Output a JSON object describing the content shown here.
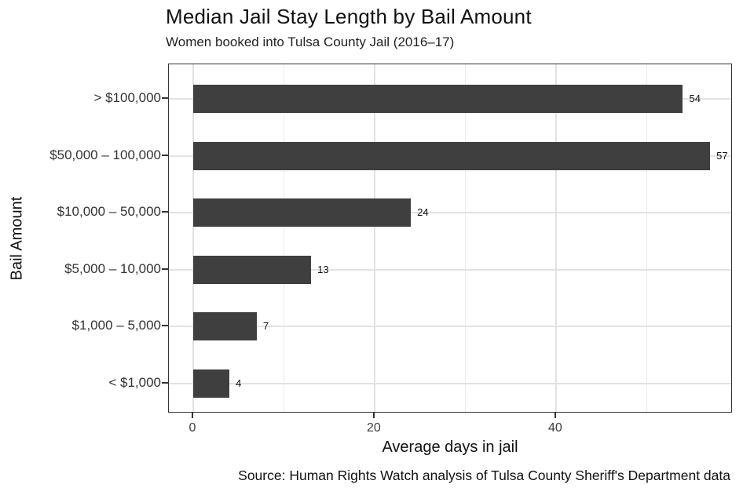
{
  "chart_data": {
    "type": "bar",
    "orientation": "horizontal",
    "title": "Median Jail Stay Length by Bail Amount",
    "subtitle": "Women booked into Tulsa County Jail (2016–17)",
    "categories": [
      "> $100,000",
      "$50,000 – 100,000",
      "$10,000 – 50,000",
      "$5,000 – 10,000",
      "$1,000 – 5,000",
      "< $1,000"
    ],
    "values": [
      54,
      57,
      24,
      13,
      7,
      4
    ],
    "value_labels": [
      "54",
      "57",
      "24",
      "13",
      "7",
      "4"
    ],
    "xlabel": "Average days in jail",
    "ylabel": "Bail Amount",
    "x_tick_values": [
      0,
      20,
      40
    ],
    "x_tick_labels": [
      "0",
      "20",
      "40"
    ],
    "x_minor_tick_values": [
      10,
      30,
      50
    ],
    "xlim": [
      0,
      59.5
    ],
    "grid": true,
    "legend": false,
    "bar_color": "#3f3f3f",
    "caption": "Source: Human Rights Watch analysis of Tulsa County Sheriff's Department data"
  }
}
